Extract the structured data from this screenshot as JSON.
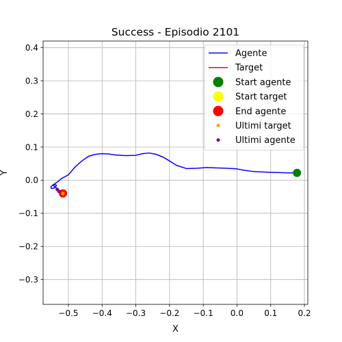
{
  "chart_data": {
    "type": "line",
    "title": "Success - Episodio 2101",
    "xlabel": "X",
    "ylabel": "Y",
    "xlim": [
      -0.575,
      0.21
    ],
    "ylim": [
      -0.375,
      0.42
    ],
    "xticks": [
      -0.5,
      -0.4,
      -0.3,
      -0.2,
      -0.1,
      0.0,
      0.1,
      0.2
    ],
    "xtick_labels": [
      "−0.5",
      "−0.4",
      "−0.3",
      "−0.2",
      "−0.1",
      "0.0",
      "0.1",
      "0.2"
    ],
    "yticks": [
      -0.3,
      -0.2,
      -0.1,
      0.0,
      0.1,
      0.2,
      0.3,
      0.4
    ],
    "ytick_labels": [
      "−0.3",
      "−0.2",
      "−0.1",
      "0.0",
      "0.1",
      "0.2",
      "0.3",
      "0.4"
    ],
    "grid": true,
    "legend_position": "upper-right",
    "series": [
      {
        "name": "Agente",
        "type": "line",
        "color": "#0000ff",
        "x": [
          0.178,
          0.15,
          0.12,
          0.09,
          0.05,
          0.02,
          0.0,
          -0.03,
          -0.06,
          -0.09,
          -0.12,
          -0.15,
          -0.18,
          -0.2,
          -0.22,
          -0.24,
          -0.26,
          -0.28,
          -0.3,
          -0.33,
          -0.36,
          -0.38,
          -0.4,
          -0.42,
          -0.44,
          -0.46,
          -0.48,
          -0.5,
          -0.52,
          -0.533,
          -0.545,
          -0.552,
          -0.55,
          -0.542,
          -0.535,
          -0.54,
          -0.545,
          -0.538,
          -0.53,
          -0.533
        ],
        "y": [
          0.022,
          0.022,
          0.023,
          0.024,
          0.026,
          0.03,
          0.034,
          0.036,
          0.037,
          0.038,
          0.036,
          0.035,
          0.045,
          0.058,
          0.07,
          0.078,
          0.082,
          0.08,
          0.075,
          0.074,
          0.076,
          0.079,
          0.08,
          0.078,
          0.072,
          0.058,
          0.04,
          0.016,
          0.005,
          -0.006,
          -0.014,
          -0.02,
          -0.025,
          -0.024,
          -0.016,
          -0.013,
          -0.016,
          -0.022,
          -0.026,
          -0.028
        ]
      },
      {
        "name": "Target",
        "type": "line",
        "color": "#ff0000",
        "x": [
          -0.517,
          -0.516
        ],
        "y": [
          -0.041,
          -0.04
        ]
      },
      {
        "name": "Start agente",
        "type": "marker",
        "color": "#008000",
        "size": 12,
        "x": [
          0.178
        ],
        "y": [
          0.022
        ]
      },
      {
        "name": "Start target",
        "type": "marker",
        "color": "#ffff00",
        "size": 12,
        "x": [
          -0.516
        ],
        "y": [
          -0.04
        ]
      },
      {
        "name": "End agente",
        "type": "marker",
        "color": "#ff0000",
        "size": 12,
        "x": [
          -0.516
        ],
        "y": [
          -0.04
        ]
      },
      {
        "name": "Ultimi target",
        "type": "marker",
        "color": "#ffa500",
        "size": 5,
        "x": [
          -0.516,
          -0.5165
        ],
        "y": [
          -0.04,
          -0.041
        ]
      },
      {
        "name": "Ultimi agente",
        "type": "marker",
        "color": "#800080",
        "size": 5,
        "x": [
          -0.533,
          -0.528
        ],
        "y": [
          -0.028,
          -0.034
        ]
      }
    ]
  }
}
